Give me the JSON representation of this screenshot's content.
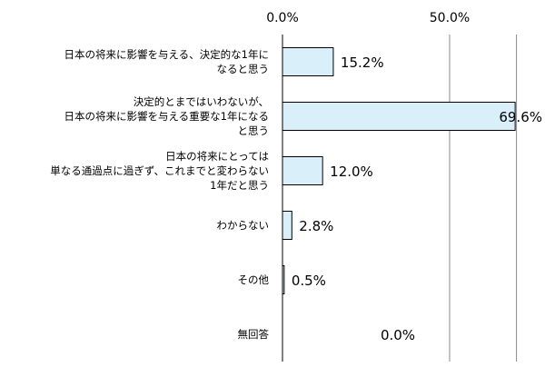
{
  "chart_data": {
    "type": "bar",
    "orientation": "horizontal",
    "categories": [
      [
        "日本の将来に影響を与える、決定的な1年に",
        "なると思う"
      ],
      [
        "決定的とまではいわないが、",
        "日本の将来に影響を与える重要な1年になる",
        "と思う"
      ],
      [
        "日本の将来にとっては",
        "単なる通過点に過ぎず、これまでと変わらない",
        "1年だと思う"
      ],
      [
        "わからない"
      ],
      [
        "その他"
      ],
      [
        "無回答"
      ]
    ],
    "values": [
      15.2,
      69.6,
      12.0,
      2.8,
      0.5,
      0.0
    ],
    "value_labels": [
      "15.2%",
      "69.6%",
      "12.0%",
      "2.8%",
      "0.5%",
      "0.0%"
    ],
    "tick_labels": [
      "0.0%",
      "50.0%"
    ],
    "xlim": [
      0,
      70
    ],
    "x_ticks": [
      0,
      50
    ],
    "axis_position": "top",
    "grid": true,
    "bar_color": "#d9f0fb",
    "bar_edge_color": "#000000"
  }
}
